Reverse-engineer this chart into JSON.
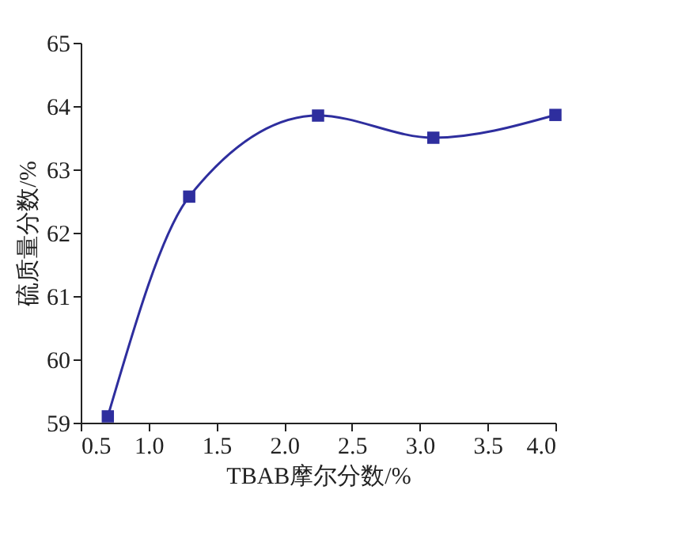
{
  "chart_data": {
    "type": "line",
    "xlabel": "TBAB摩尔分数/%",
    "ylabel": "硫质量分数/%",
    "x": [
      0.7,
      1.3,
      2.25,
      3.1,
      4.0
    ],
    "series": [
      {
        "color": "#2e2e9e",
        "values": [
          59.1,
          62.57,
          63.85,
          63.5,
          63.86
        ]
      }
    ],
    "xlim": [
      0.5,
      4.0
    ],
    "xticks": [
      {
        "value": 0.5,
        "label": "0.5"
      },
      {
        "value": 1.0,
        "label": "1.0"
      },
      {
        "value": 1.5,
        "label": "1.5"
      },
      {
        "value": 2.0,
        "label": "2.0"
      },
      {
        "value": 2.5,
        "label": "2.5"
      },
      {
        "value": 3.0,
        "label": "3.0"
      },
      {
        "value": 3.5,
        "label": "3.5"
      },
      {
        "value": 4.0,
        "label": "4.0"
      }
    ],
    "ylim": [
      59,
      65
    ],
    "yticks": [
      59,
      60,
      61,
      62,
      63,
      64,
      65
    ],
    "marker": "square",
    "grid": false,
    "line_style": "solid"
  }
}
